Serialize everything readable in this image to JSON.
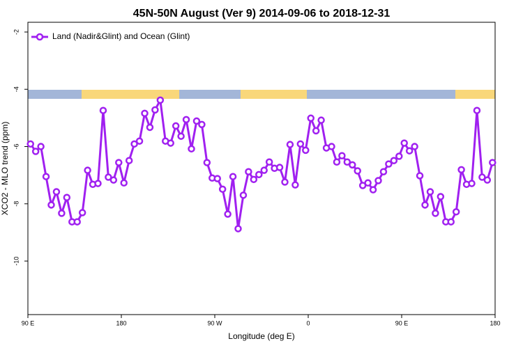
{
  "chart_data": {
    "type": "line",
    "title": "45N-50N August (Ver 9)   2014-09-06 to 2018-12-31",
    "xlabel": "Longitude (deg E)",
    "ylabel": "XCO2 - MLO trend (ppm)",
    "x": [
      92.5,
      97.5,
      102.5,
      107.5,
      112.5,
      117.5,
      122.5,
      127.5,
      132.5,
      137.5,
      142.5,
      147.5,
      152.5,
      157.5,
      162.5,
      167.5,
      172.5,
      177.5,
      182.5,
      187.5,
      192.5,
      197.5,
      202.5,
      207.5,
      212.5,
      217.5,
      222.5,
      227.5,
      232.5,
      237.5,
      242.5,
      247.5,
      252.5,
      257.5,
      262.5,
      267.5,
      272.5,
      277.5,
      282.5,
      287.5,
      292.5,
      297.5,
      302.5,
      307.5,
      312.5,
      317.5,
      322.5,
      327.5,
      332.5,
      337.5,
      342.5,
      347.5,
      352.5,
      357.5,
      362.5,
      367.5,
      372.5,
      377.5,
      382.5,
      387.5,
      392.5,
      397.5,
      402.5,
      407.5,
      412.5,
      417.5,
      422.5,
      427.5,
      432.5,
      437.5,
      442.5,
      447.5,
      452.5,
      457.5,
      462.5,
      467.5,
      472.5,
      477.5,
      482.5,
      487.5,
      492.5,
      497.5,
      502.5,
      507.5,
      512.5,
      517.5,
      522.5,
      527.5,
      532.5,
      537.5
    ],
    "series": [
      {
        "name": "Land (Nadir&Glint) and Ocean (Glint)",
        "color": "#a020f0",
        "values": [
          -5.91,
          -6.17,
          -6.0,
          -7.05,
          -8.04,
          -7.58,
          -8.33,
          -7.78,
          -8.63,
          -8.63,
          -8.31,
          -6.83,
          -7.32,
          -7.29,
          -4.74,
          -7.07,
          -7.17,
          -6.56,
          -7.27,
          -6.49,
          -5.91,
          -5.81,
          -4.84,
          -5.33,
          -4.72,
          -4.38,
          -5.81,
          -5.88,
          -5.28,
          -5.64,
          -5.06,
          -6.08,
          -5.11,
          -5.23,
          -6.56,
          -7.1,
          -7.12,
          -7.49,
          -8.36,
          -7.05,
          -8.87,
          -7.7,
          -6.88,
          -7.15,
          -6.98,
          -6.83,
          -6.54,
          -6.76,
          -6.73,
          -7.24,
          -5.93,
          -7.34,
          -5.91,
          -6.13,
          -5.01,
          -5.45,
          -5.08,
          -6.05,
          -6.0,
          -6.54,
          -6.32,
          -6.54,
          -6.64,
          -6.85,
          -7.36,
          -7.27,
          -7.51,
          -7.19,
          -6.88,
          -6.61,
          -6.49,
          -6.34,
          -5.88,
          -6.15,
          -6.0,
          -7.02,
          -8.04,
          -7.58,
          -8.33,
          -7.75,
          -8.63,
          -8.63,
          -8.28,
          -6.81,
          -7.32,
          -7.29,
          -4.74,
          -7.07,
          -7.17,
          -6.56
        ]
      }
    ],
    "xlim": [
      90,
      540
    ],
    "xticks": [
      {
        "value": 90,
        "label": "90 E"
      },
      180,
      {
        "value": 270,
        "label": "90 W"
      },
      {
        "value": 360,
        "label": "0"
      },
      {
        "value": 450,
        "label": "90 E"
      },
      {
        "value": 540,
        "label": "180"
      }
    ],
    "ylim": [
      -11.87,
      -1.66
    ],
    "yticks": [
      -2,
      -4,
      -6,
      -8,
      -10
    ],
    "legend": "top-left"
  }
}
